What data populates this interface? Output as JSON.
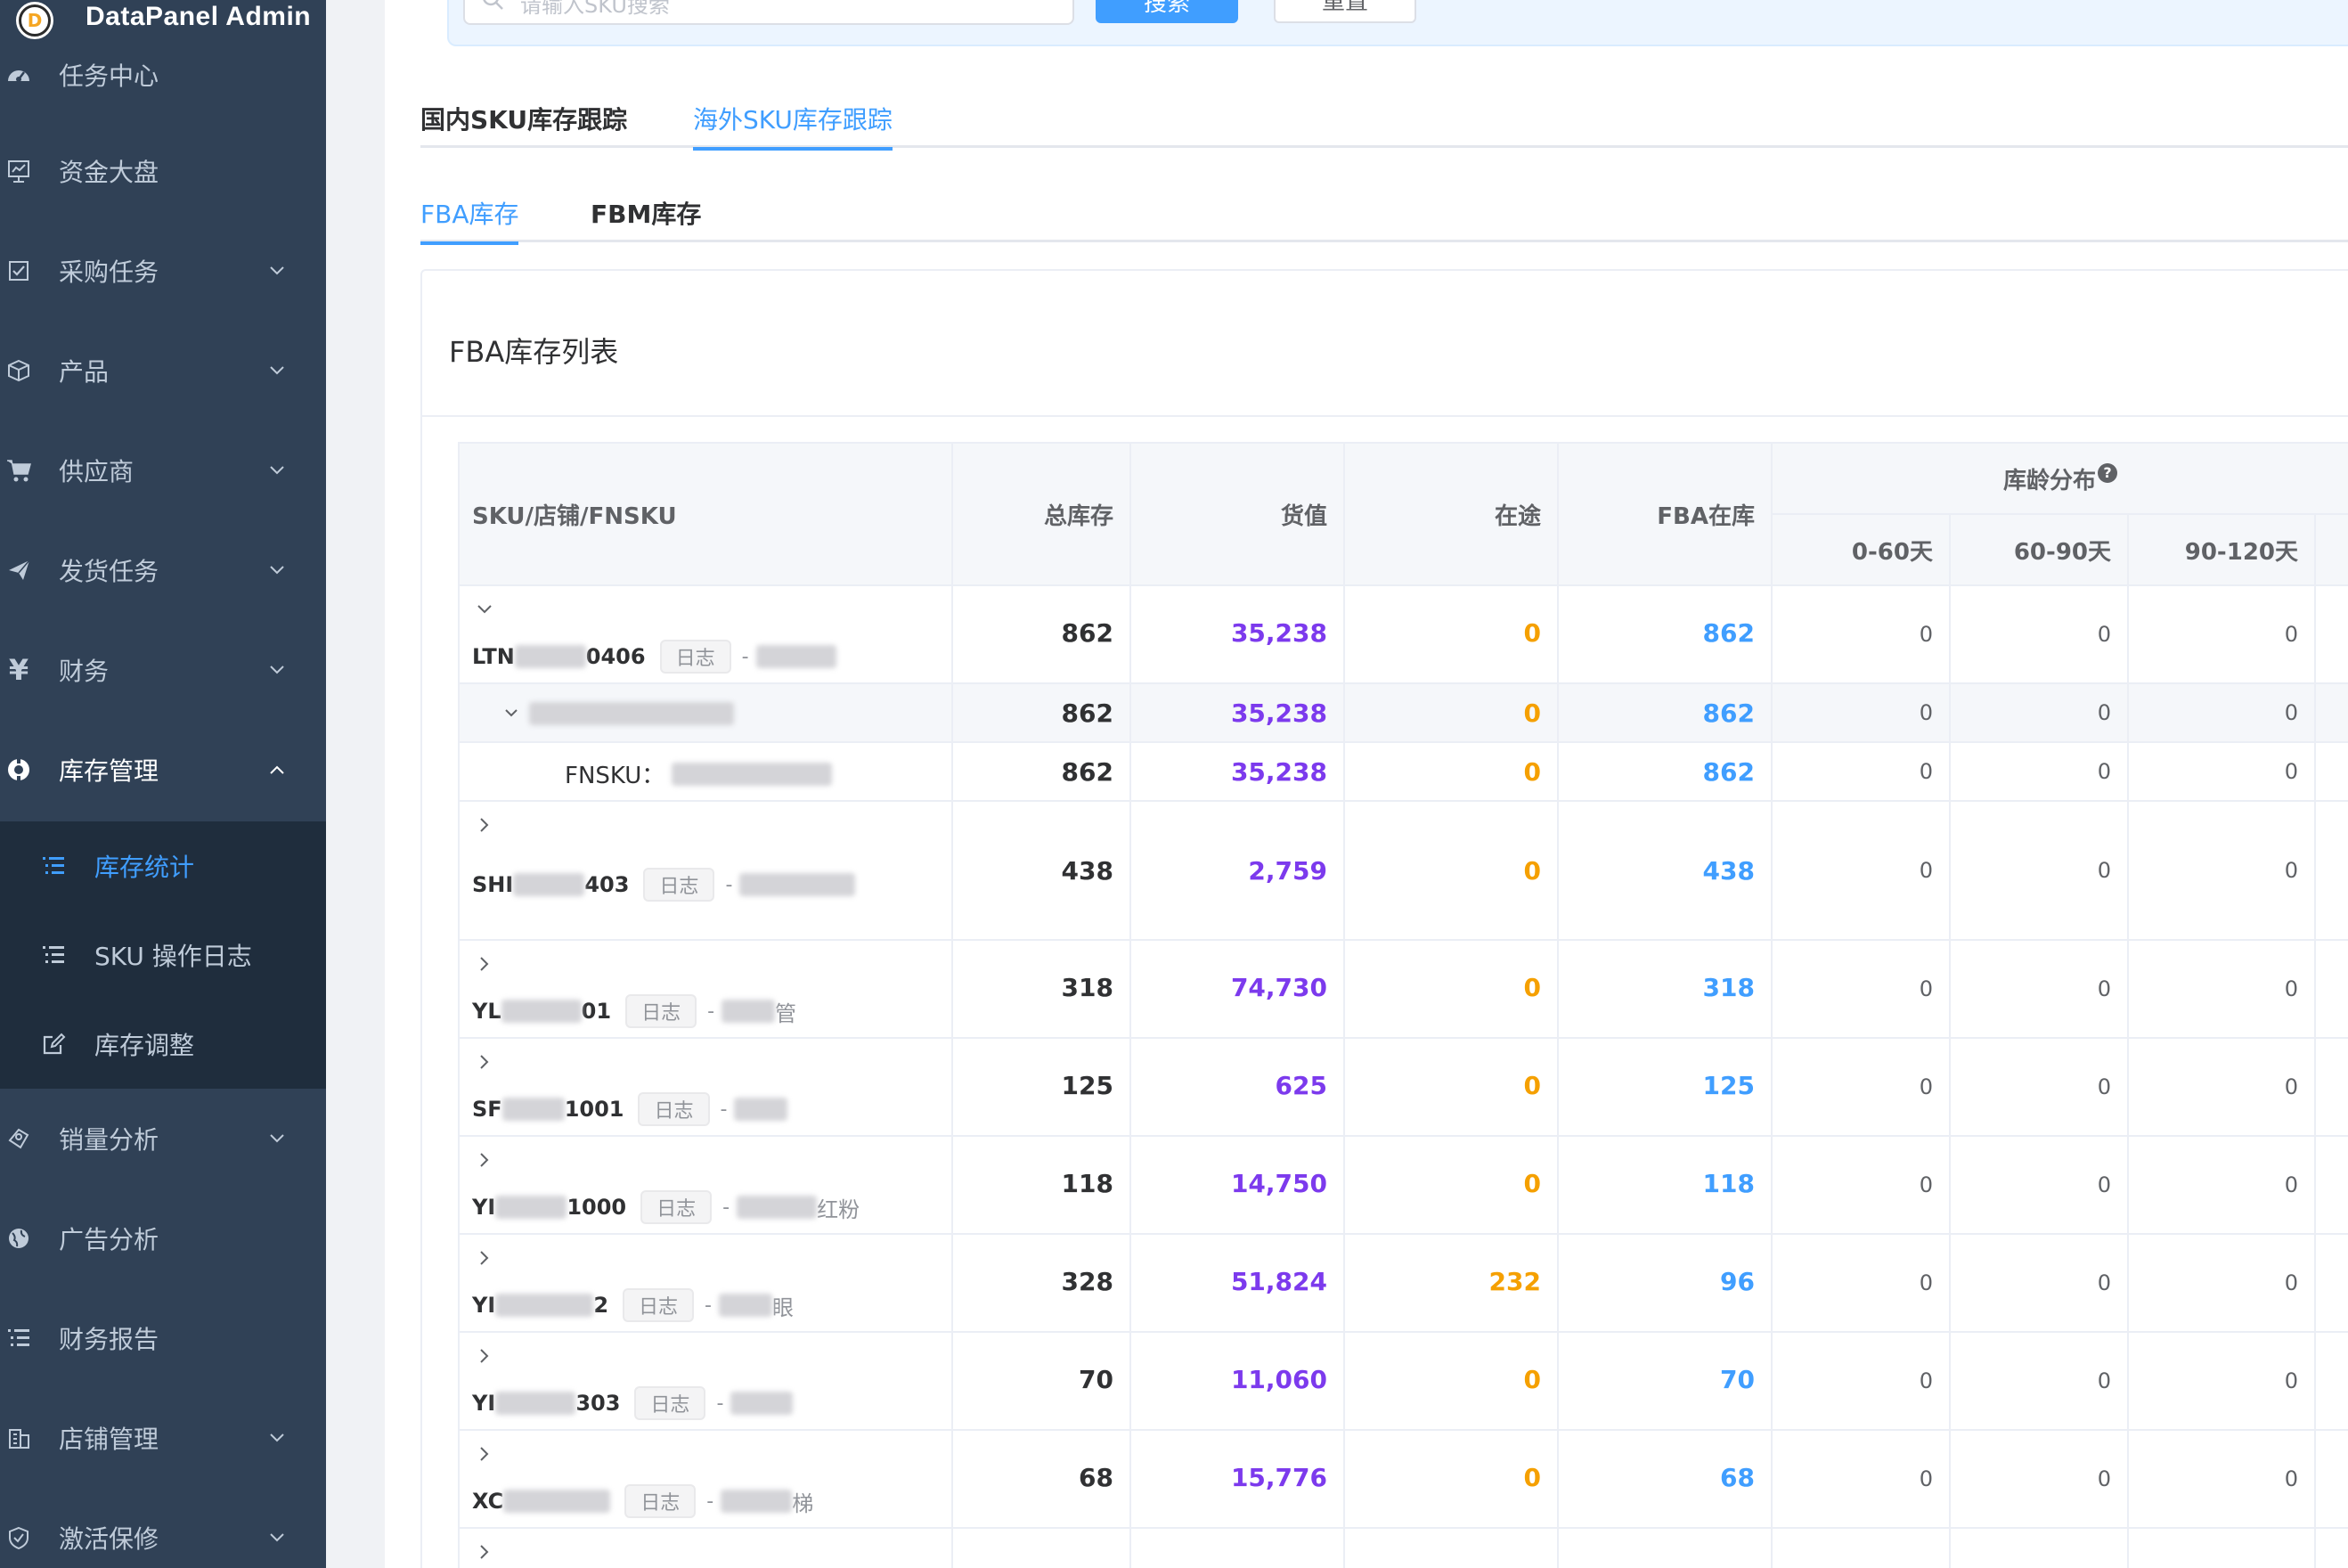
{
  "app": {
    "title": "DataPanel Admin",
    "logo_letter": "D"
  },
  "sidebar": {
    "items": [
      {
        "label": "任务中心",
        "icon": "dashboard-icon",
        "has_arrow": false
      },
      {
        "label": "资金大盘",
        "icon": "chart-board-icon",
        "has_arrow": false
      },
      {
        "label": "采购任务",
        "icon": "checkbox-icon",
        "has_arrow": true
      },
      {
        "label": "产品",
        "icon": "cube-icon",
        "has_arrow": true
      },
      {
        "label": "供应商",
        "icon": "cart-icon",
        "has_arrow": true
      },
      {
        "label": "发货任务",
        "icon": "send-icon",
        "has_arrow": true
      },
      {
        "label": "财务",
        "icon": "yen-icon",
        "has_arrow": true
      },
      {
        "label": "库存管理",
        "icon": "inventory-icon",
        "has_arrow": true,
        "open": true
      },
      {
        "label": "销量分析",
        "icon": "sales-icon",
        "has_arrow": true
      },
      {
        "label": "广告分析",
        "icon": "globe-icon",
        "has_arrow": false
      },
      {
        "label": "财务报告",
        "icon": "list-icon",
        "has_arrow": false
      },
      {
        "label": "店铺管理",
        "icon": "building-icon",
        "has_arrow": true
      },
      {
        "label": "激活保修",
        "icon": "shield-icon",
        "has_arrow": true
      }
    ],
    "submenu": [
      {
        "label": "库存统计",
        "icon": "list-icon",
        "active": true
      },
      {
        "label": "SKU 操作日志",
        "icon": "list-icon",
        "active": false
      },
      {
        "label": "库存调整",
        "icon": "edit-icon",
        "active": false
      }
    ]
  },
  "search": {
    "placeholder": "请输入SKU搜索",
    "search_label": "搜索",
    "reset_label": "重置"
  },
  "tabs_primary": [
    {
      "label": "国内SKU库存跟踪",
      "active": false
    },
    {
      "label": "海外SKU库存跟踪",
      "active": true
    }
  ],
  "tabs_secondary": [
    {
      "label": "FBA库存",
      "active": true
    },
    {
      "label": "FBM库存",
      "active": false
    }
  ],
  "card": {
    "title": "FBA库存列表"
  },
  "table": {
    "headers": {
      "sku": "SKU/店铺/FNSKU",
      "total": "总库存",
      "value": "货值",
      "transit": "在途",
      "fba": "FBA在库",
      "age_group": "库龄分布",
      "age_0_60": "0-60天",
      "age_60_90": "60-90天",
      "age_90_120": "90-120天"
    },
    "log_label": "日志",
    "fnsku_label": "FNSKU：",
    "rows": [
      {
        "sku_prefix": "LTN",
        "sku_suffix": "0406",
        "suffix_text": "",
        "total": "862",
        "value": "35,238",
        "transit": "0",
        "fba": "862",
        "age1": "0",
        "age2": "0",
        "age3": "0"
      },
      {
        "kind": "shop",
        "total": "862",
        "value": "35,238",
        "transit": "0",
        "fba": "862",
        "age1": "0",
        "age2": "0",
        "age3": "0"
      },
      {
        "kind": "fnsku",
        "total": "862",
        "value": "35,238",
        "transit": "0",
        "fba": "862",
        "age1": "0",
        "age2": "0",
        "age3": "0"
      },
      {
        "sku_prefix": "SHI",
        "sku_suffix": "403",
        "suffix_text": "",
        "total": "438",
        "value": "2,759",
        "transit": "0",
        "fba": "438",
        "age1": "0",
        "age2": "0",
        "age3": "0"
      },
      {
        "sku_prefix": "YL",
        "sku_suffix": "01",
        "suffix_text": "管",
        "total": "318",
        "value": "74,730",
        "transit": "0",
        "fba": "318",
        "age1": "0",
        "age2": "0",
        "age3": "0"
      },
      {
        "sku_prefix": "SF",
        "sku_suffix": "1001",
        "suffix_text": "",
        "total": "125",
        "value": "625",
        "transit": "0",
        "fba": "125",
        "age1": "0",
        "age2": "0",
        "age3": "0"
      },
      {
        "sku_prefix": "YI",
        "sku_suffix": "1000",
        "suffix_text": "红粉",
        "total": "118",
        "value": "14,750",
        "transit": "0",
        "fba": "118",
        "age1": "0",
        "age2": "0",
        "age3": "0"
      },
      {
        "sku_prefix": "YI",
        "sku_suffix": "2",
        "suffix_text": "眼",
        "total": "328",
        "value": "51,824",
        "transit": "232",
        "fba": "96",
        "age1": "0",
        "age2": "0",
        "age3": "0"
      },
      {
        "sku_prefix": "YI",
        "sku_suffix": "303",
        "suffix_text": "",
        "total": "70",
        "value": "11,060",
        "transit": "0",
        "fba": "70",
        "age1": "0",
        "age2": "0",
        "age3": "0"
      },
      {
        "sku_prefix": "XC",
        "sku_suffix": "",
        "suffix_text": "梯",
        "total": "68",
        "value": "15,776",
        "transit": "0",
        "fba": "68",
        "age1": "0",
        "age2": "0",
        "age3": "0"
      }
    ]
  }
}
